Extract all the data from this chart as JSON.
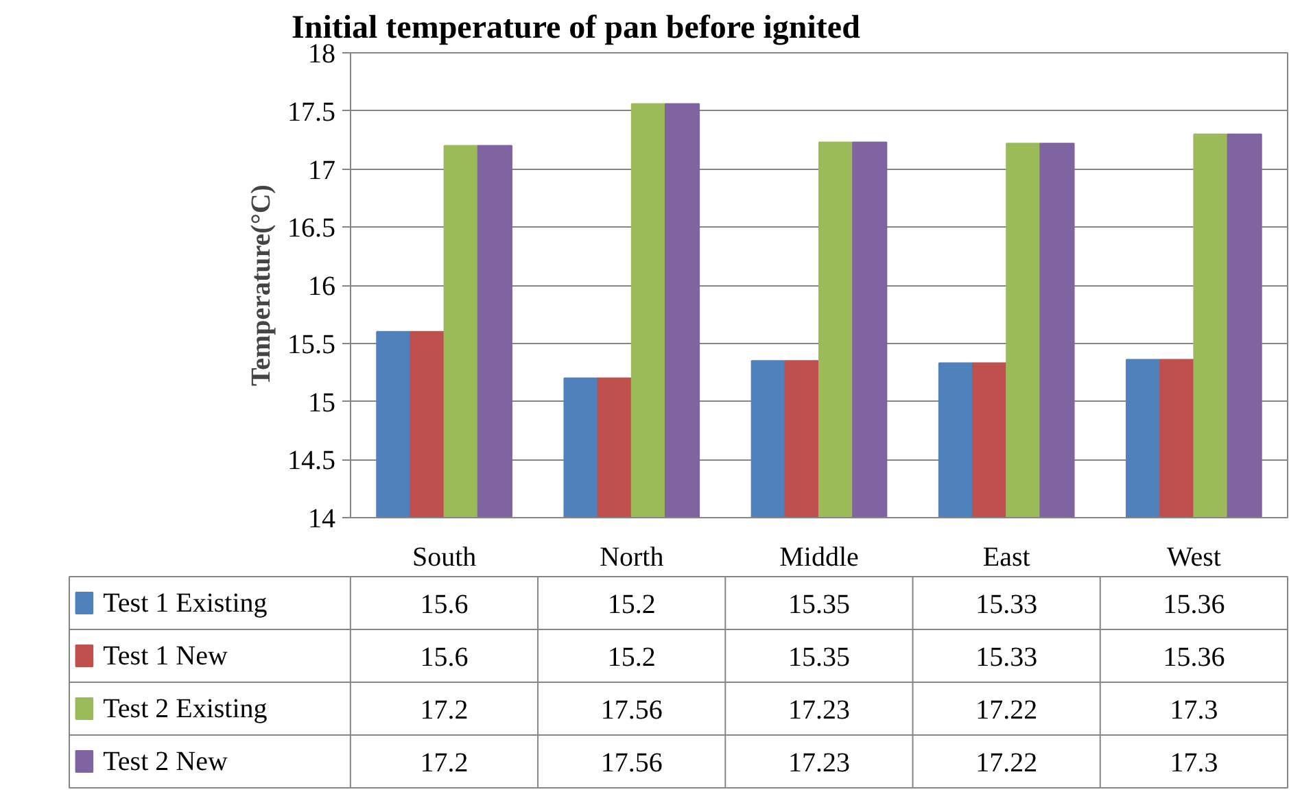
{
  "chart_data": {
    "type": "bar",
    "title": "Initial temperature of pan before ignited",
    "ylabel": "Temperature(°C)",
    "categories": [
      "South",
      "North",
      "Middle",
      "East",
      "West"
    ],
    "series": [
      {
        "name": "Test 1 Existing",
        "color": "#4f81bd",
        "values": [
          15.6,
          15.2,
          15.35,
          15.33,
          15.36
        ]
      },
      {
        "name": "Test 1 New",
        "color": "#c0504d",
        "values": [
          15.6,
          15.2,
          15.35,
          15.33,
          15.36
        ]
      },
      {
        "name": "Test 2 Existing",
        "color": "#9bbb59",
        "values": [
          17.2,
          17.56,
          17.23,
          17.22,
          17.3
        ]
      },
      {
        "name": "Test 2 New",
        "color": "#8064a2",
        "values": [
          17.2,
          17.56,
          17.23,
          17.22,
          17.3
        ]
      }
    ],
    "ylim": [
      14,
      18
    ],
    "yticks": [
      14,
      14.5,
      15,
      15.5,
      16,
      16.5,
      17,
      17.5,
      18
    ],
    "grid": "y",
    "legend": "bottom",
    "data_labels": true
  }
}
